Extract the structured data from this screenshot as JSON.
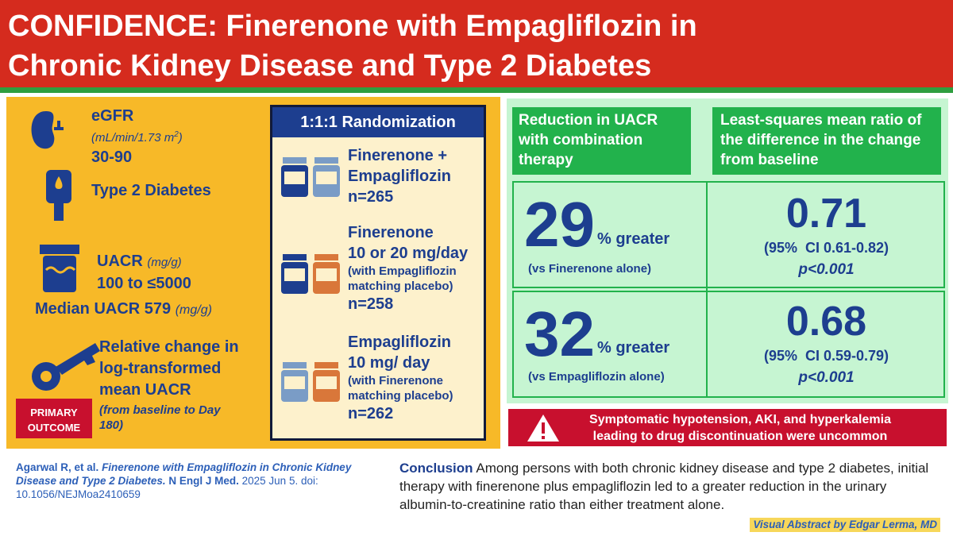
{
  "header": {
    "title": [
      "CONFIDENCE: Finerenone with Empagliflozin in",
      "Chronic Kidney Disease and Type 2 Diabetes"
    ]
  },
  "eligibility": {
    "egfr": {
      "label": "eGFR",
      "unit": "(mL/min/1.73 m",
      "unit_exp": "2",
      "unit_close": ")",
      "range": "30-90"
    },
    "diabetes": "Type 2 Diabetes",
    "uacr": {
      "label": "UACR",
      "unit": "(mg/g)",
      "range": "100 to ≤5000",
      "median": "Median UACR 579",
      "median_unit": "(mg/g)"
    },
    "outcome": {
      "text": "Relative change in log-transformed mean UACR",
      "note": "(from baseline to Day 180)",
      "badge": [
        "PRIMARY",
        "OUTCOME"
      ]
    }
  },
  "randomization": {
    "title": "1:1:1 Randomization",
    "arms": [
      {
        "name": [
          "Finerenone +",
          "Empagliflozin"
        ],
        "n": "n=265"
      },
      {
        "name": [
          "Finerenone",
          "10 or 20 mg/day"
        ],
        "detail": "(with Empagliflozin matching placebo)",
        "n": "n=258"
      },
      {
        "name": [
          "Empagliflozin",
          "10 mg/ day"
        ],
        "detail": "(with Finerenone matching placebo)",
        "n": "n=262"
      }
    ]
  },
  "results": {
    "headers": [
      "Reduction in UACR with combination therapy",
      "Least-squares mean ratio of the difference in the change from baseline"
    ],
    "rows": [
      {
        "percent": "29",
        "percent_label": "% greater",
        "comparator": "(vs Finerenone alone)",
        "ratio": "0.71",
        "ci": "(95%  CI 0.61-0.82)",
        "p": "p<0.001"
      },
      {
        "percent": "32",
        "percent_label": "% greater",
        "comparator": "(vs Empagliflozin alone)",
        "ratio": "0.68",
        "ci": "(95%  CI 0.59-0.79)",
        "p": "p<0.001"
      }
    ]
  },
  "safety": "Symptomatic hypotension, AKI, and hyperkalemia leading to drug discontinuation were uncommon",
  "citation": {
    "authors": "Agarwal R, et al.",
    "title": "Finerenone with Empagliflozin in Chronic Kidney Disease and Type 2 Diabetes.",
    "journal": "N Engl J Med.",
    "date": "2025 Jun 5.",
    "doi": "doi: 10.1056/NEJMoa2410659"
  },
  "conclusion": {
    "label": "Conclusion",
    "text": "Among persons with both chronic kidney disease and type 2 diabetes, initial therapy with finerenone plus empagliflozin led to a greater reduction in the urinary albumin-to-creatinine ratio than either treatment alone."
  },
  "credit": "Visual Abstract by Edgar Lerma, MD"
}
